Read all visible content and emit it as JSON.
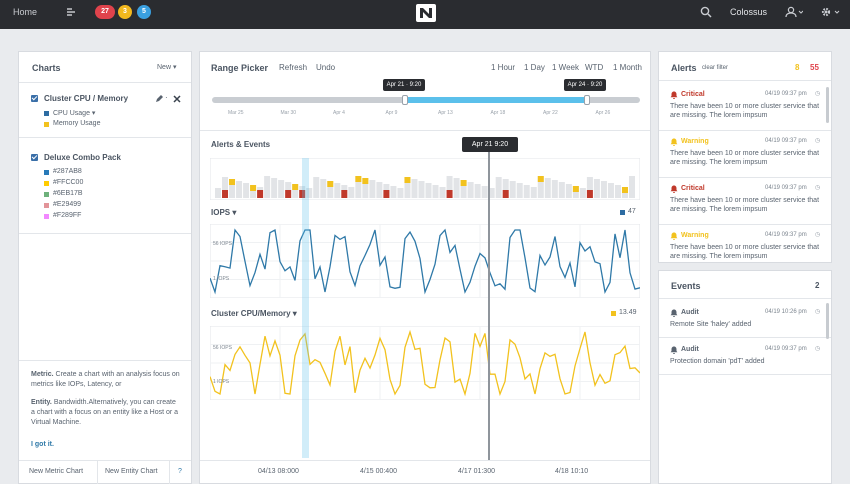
{
  "topbar": {
    "home": "Home",
    "badges": [
      {
        "count": "27",
        "color": "#e0434c"
      },
      {
        "count": "3",
        "color": "#f2b81e"
      },
      {
        "count": "5",
        "color": "#3aa0e0"
      }
    ],
    "cluster": "Colossus"
  },
  "charts_panel": {
    "title": "Charts",
    "new_label": "New",
    "groups": [
      {
        "title": "Cluster CPU / Memory",
        "entries": [
          {
            "label": "CPU Usage",
            "color": "#2d6ca2",
            "dropdown": true
          },
          {
            "label": "Memory Usage",
            "color": "#f2c21e"
          }
        ]
      },
      {
        "title": "Deluxe Combo Pack",
        "entries": [
          {
            "label": "#287AB8",
            "color": "#287ab8"
          },
          {
            "label": "#FFCC00",
            "color": "#ffcc00"
          },
          {
            "label": "#6EB17B",
            "color": "#6eb17b"
          },
          {
            "label": "#E29499",
            "color": "#e29499"
          },
          {
            "label": "#F289FF",
            "color": "#f289ff"
          }
        ]
      }
    ],
    "help": {
      "metric_bold": "Metric.",
      "metric_text": "Create a chart with an analysis focus on metrics like IOPs, Latency, or",
      "entity_bold": "Entity.",
      "entity_text": "Bandwidth.Alternatively, you can create a chart with a focus on an entity like a Host or a Virtual Machine.",
      "got_it": "I got it."
    },
    "footer": {
      "new_metric": "New Metric Chart",
      "new_entity": "New Entity Chart",
      "help": "?"
    }
  },
  "center": {
    "range_picker": "Range Picker",
    "refresh": "Refresh",
    "undo": "Undo",
    "ranges": [
      "1 Hour",
      "1 Day",
      "1 Week",
      "WTD",
      "1 Month"
    ],
    "range_start_tip": "Apr 21 · 9:20",
    "range_end_tip": "Apr 24 · 9:20",
    "slider_ticks": [
      "Mar 25",
      "Mar 30",
      "Apr 4",
      "Apr 9",
      "Apr 13",
      "Apr 18",
      "Apr 22",
      "Apr 26"
    ],
    "slider_start": 0.45,
    "slider_end": 0.875,
    "cursor_tip": "Apr 21 9:20",
    "alerts_events": "Alerts & Events",
    "iops": "IOPS",
    "iops_value": "47",
    "iops_top": "56 IOPS",
    "iops_bottom": "1 IOPS",
    "cpu_memory": "Cluster CPU/Memory",
    "cpu_value": "13.49",
    "cpu_top": "56 IOPS",
    "cpu_bottom": "1 IOPS",
    "x_ticks": [
      "04/13 08:000",
      "4/15 00:400",
      "4/17 01:300",
      "4/18 10:10"
    ],
    "colors": {
      "iops_line": "#2f79a8",
      "cpu_line": "#f2c21e",
      "slider": "#5bc0eb",
      "critical": "#c0392b",
      "warning": "#f2c21e"
    }
  },
  "alerts_panel": {
    "title": "Alerts",
    "clear": "clear filter",
    "warn_count": "8",
    "crit_count": "55",
    "alerts": [
      {
        "severity": "Critical",
        "time": "04/19 09:37 pm",
        "message": "There have been 10 or more cluster service that are missing. The lorem impsum"
      },
      {
        "severity": "Warning",
        "time": "04/19 09:37 pm",
        "message": "There have been 10 or more cluster service that are missing. The lorem impsum"
      },
      {
        "severity": "Critical",
        "time": "04/19 09:37 pm",
        "message": "There have been 10 or more cluster service that are missing. The lorem impsum"
      },
      {
        "severity": "Warning",
        "time": "04/19 09:37 pm",
        "message": "There have been 10 or more cluster service that are missing. The lorem impsum"
      }
    ]
  },
  "events_panel": {
    "title": "Events",
    "count": "2",
    "events": [
      {
        "type": "Audit",
        "time": "04/19 10:26 pm",
        "message": "Remote Site 'haley' added"
      },
      {
        "type": "Audit",
        "time": "04/19 09:37 pm",
        "message": "Protection domain 'pdT' added"
      }
    ]
  }
}
